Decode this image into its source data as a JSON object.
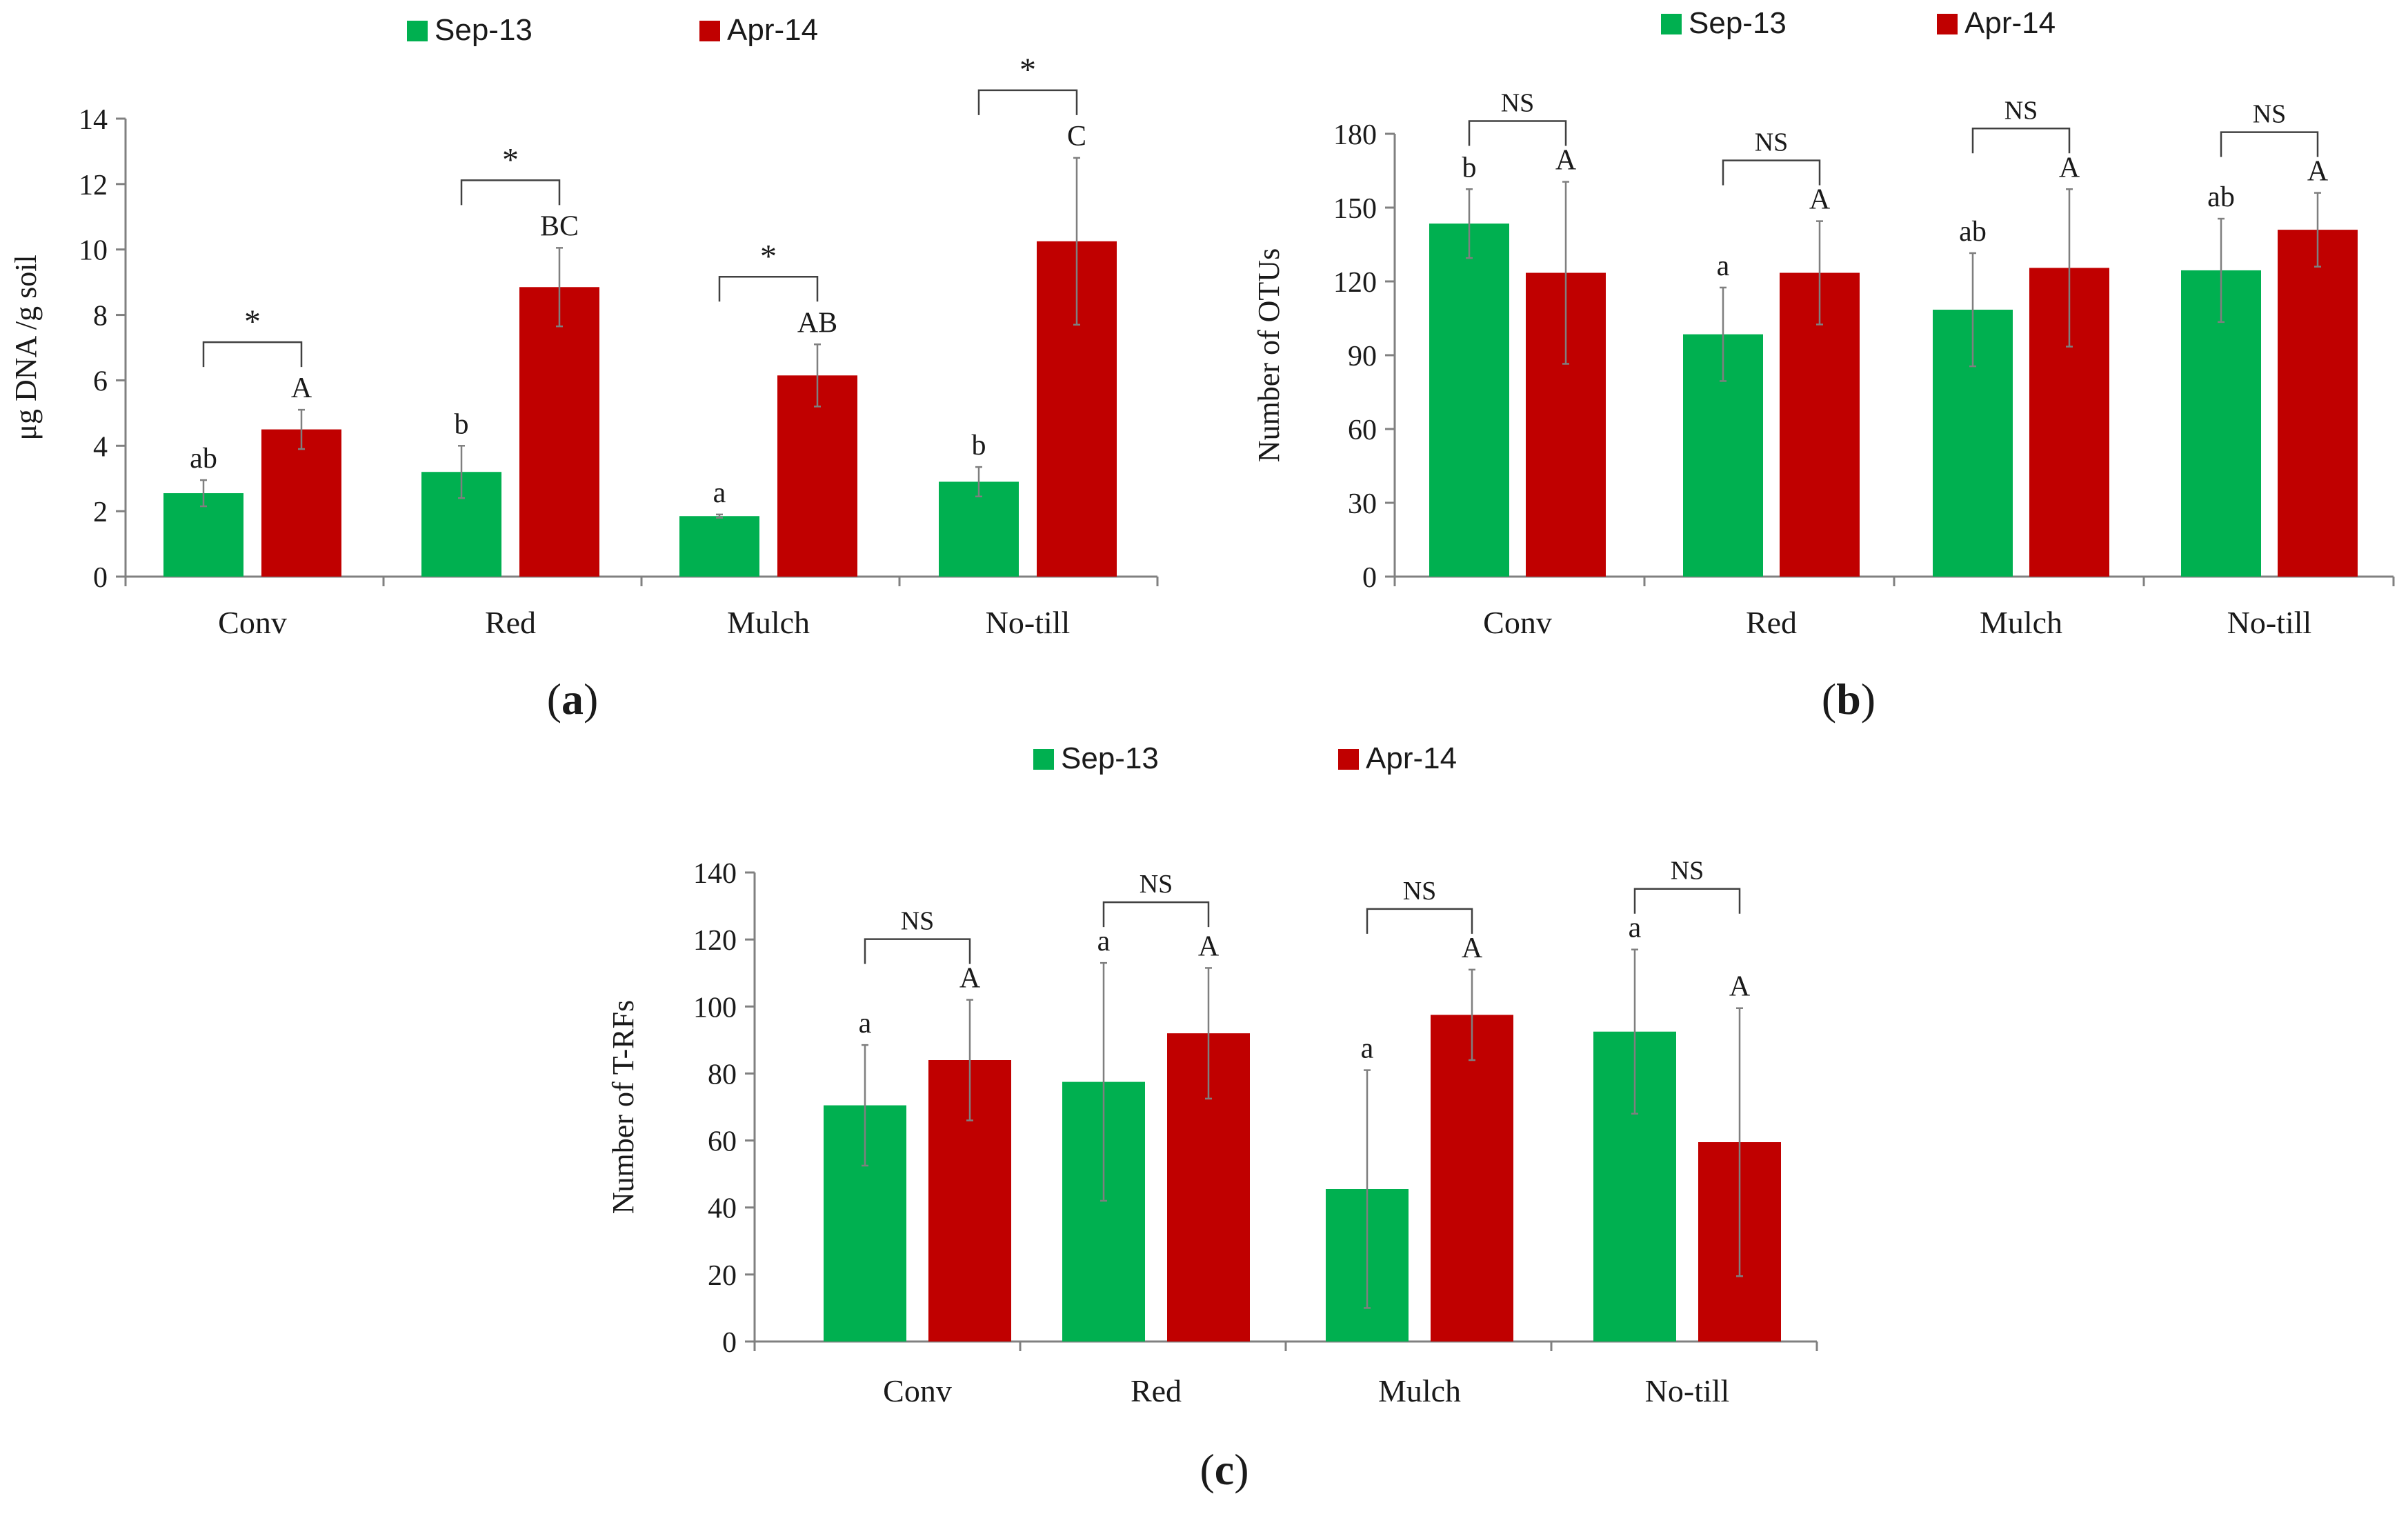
{
  "colors": {
    "sep": "#00b050",
    "apr": "#c00000",
    "axis": "#808080",
    "text": "#1a1a1a"
  },
  "chart_data": [
    {
      "type": "bar",
      "panel_label": "a",
      "categories": [
        "Conv",
        "Red",
        "Mulch",
        "No-till"
      ],
      "ylabel": "μg DNA /g soil",
      "ylim": [
        0,
        14
      ],
      "yticks": [
        0,
        2,
        4,
        6,
        8,
        10,
        12,
        14
      ],
      "legend": [
        "Sep-13",
        "Apr-14"
      ],
      "series": [
        {
          "name": "Sep-13",
          "values": [
            2.55,
            3.2,
            1.85,
            2.9
          ],
          "errors": [
            0.4,
            0.8,
            0.05,
            0.45
          ],
          "letters": [
            "ab",
            "b",
            "a",
            "b"
          ]
        },
        {
          "name": "Apr-14",
          "values": [
            4.5,
            8.85,
            6.15,
            10.25
          ],
          "errors": [
            0.6,
            1.2,
            0.95,
            2.55
          ],
          "letters": [
            "A",
            "BC",
            "AB",
            "C"
          ]
        }
      ],
      "significance": [
        "*",
        "*",
        "*",
        "*"
      ]
    },
    {
      "type": "bar",
      "panel_label": "b",
      "categories": [
        "Conv",
        "Red",
        "Mulch",
        "No-till"
      ],
      "ylabel": "Number of OTUs",
      "ylim": [
        0,
        180
      ],
      "yticks": [
        0,
        30,
        60,
        90,
        120,
        150,
        180
      ],
      "legend": [
        "Sep-13",
        "Apr-14"
      ],
      "series": [
        {
          "name": "Sep-13",
          "values": [
            143.5,
            98.5,
            108.5,
            124.5
          ],
          "errors": [
            14,
            19,
            23,
            21
          ],
          "letters": [
            "b",
            "a",
            "ab",
            "ab"
          ]
        },
        {
          "name": "Apr-14",
          "values": [
            123.5,
            123.5,
            125.5,
            141
          ],
          "errors": [
            37,
            21,
            32,
            15
          ],
          "letters": [
            "A",
            "A",
            "A",
            "A"
          ]
        }
      ],
      "significance": [
        "NS",
        "NS",
        "NS",
        "NS"
      ]
    },
    {
      "type": "bar",
      "panel_label": "c",
      "categories": [
        "Conv",
        "Red",
        "Mulch",
        "No-till"
      ],
      "ylabel": "Number of T-RFs",
      "ylim": [
        0,
        140
      ],
      "yticks": [
        0,
        20,
        40,
        60,
        80,
        100,
        120,
        140
      ],
      "legend": [
        "Sep-13",
        "Apr-14"
      ],
      "series": [
        {
          "name": "Sep-13",
          "values": [
            70.5,
            77.5,
            45.5,
            92.5
          ],
          "errors": [
            18,
            35.5,
            35.5,
            24.5
          ],
          "letters": [
            "a",
            "a",
            "a",
            "a"
          ]
        },
        {
          "name": "Apr-14",
          "values": [
            84,
            92,
            97.5,
            59.5
          ],
          "errors": [
            18,
            19.5,
            13.5,
            40
          ],
          "letters": [
            "A",
            "A",
            "A",
            "A"
          ]
        }
      ],
      "significance": [
        "NS",
        "NS",
        "NS",
        "NS"
      ]
    }
  ]
}
